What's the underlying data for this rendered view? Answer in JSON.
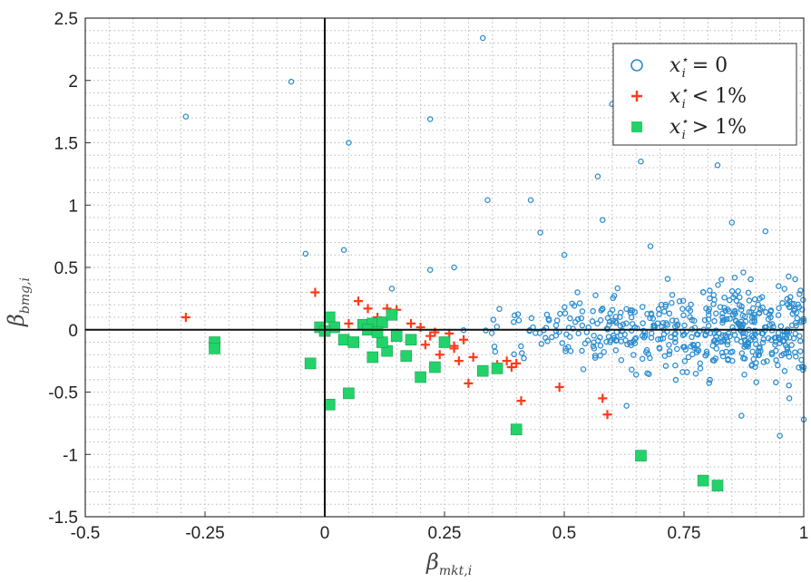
{
  "chart_data": {
    "type": "scatter",
    "title": "",
    "xlabel": {
      "base": "β",
      "sub": "mkt,i"
    },
    "ylabel": {
      "base": "β",
      "sub": "bmg,i"
    },
    "xlim": [
      -0.5,
      1
    ],
    "ylim": [
      -1.5,
      2.5
    ],
    "xticks": [
      -0.5,
      -0.25,
      0,
      0.25,
      0.5,
      0.75,
      1
    ],
    "xtick_labels": [
      "-0.5",
      "-0.25",
      "0",
      "0.25",
      "0.5",
      "0.75",
      "1"
    ],
    "yticks": [
      -1.5,
      -1,
      -0.5,
      0,
      0.5,
      1,
      1.5,
      2,
      2.5
    ],
    "ytick_labels": [
      "-1.5",
      "-1",
      "-0.5",
      "0",
      "0.5",
      "1",
      "1.5",
      "2",
      "2.5"
    ],
    "minor_grid_step_x": 0.05,
    "minor_grid_step_y": 0.1,
    "grid": true,
    "legend_position": "top-right",
    "colors": {
      "blue": "#2b8ccf",
      "red": "#ff3b1a",
      "green": "#22d36a"
    },
    "series": [
      {
        "name": "x_i* = 0",
        "legend": {
          "base": "x",
          "sup": "⋆",
          "sub": "i",
          "rest": " = 0"
        },
        "marker": "circle-open",
        "color": "#2b8ccf",
        "points": [
          [
            -0.29,
            1.71
          ],
          [
            -0.07,
            1.99
          ],
          [
            0.33,
            2.34
          ],
          [
            0.22,
            1.69
          ],
          [
            0.05,
            1.5
          ],
          [
            0.6,
            1.81
          ],
          [
            0.34,
            1.04
          ],
          [
            0.43,
            1.04
          ],
          [
            0.57,
            1.23
          ],
          [
            0.66,
            1.35
          ],
          [
            0.82,
            1.32
          ],
          [
            -0.04,
            0.61
          ],
          [
            0.04,
            0.64
          ],
          [
            0.58,
            0.88
          ],
          [
            0.85,
            0.86
          ],
          [
            0.45,
            0.78
          ],
          [
            0.27,
            0.5
          ],
          [
            0.22,
            0.48
          ],
          [
            0.14,
            0.33
          ],
          [
            0.5,
            0.6
          ],
          [
            0.68,
            0.67
          ],
          [
            0.92,
            0.79
          ],
          [
            0.79,
            0.3
          ],
          [
            0.95,
            -0.85
          ],
          [
            0.87,
            -0.69
          ],
          [
            1.0,
            -0.72
          ],
          [
            0.97,
            -0.55
          ],
          [
            0.65,
            -0.36
          ],
          [
            0.71,
            -0.21
          ],
          [
            0.63,
            -0.61
          ]
        ],
        "generated_cloud": {
          "count": 520,
          "x_range": [
            0.28,
            1.0
          ],
          "y_spread": 0.38
        }
      },
      {
        "name": "x_i* < 1%",
        "legend": {
          "base": "x",
          "sup": "⋆",
          "sub": "i",
          "rest": " < 1%"
        },
        "marker": "plus",
        "color": "#ff3b1a",
        "points": [
          [
            -0.29,
            0.1
          ],
          [
            -0.02,
            0.3
          ],
          [
            0.07,
            0.23
          ],
          [
            0.09,
            0.17
          ],
          [
            0.15,
            0.16
          ],
          [
            0.13,
            0.17
          ],
          [
            0.2,
            0.02
          ],
          [
            0.23,
            -0.02
          ],
          [
            0.25,
            -0.1
          ],
          [
            0.27,
            -0.15
          ],
          [
            0.28,
            -0.25
          ],
          [
            0.3,
            -0.43
          ],
          [
            0.36,
            -0.28
          ],
          [
            0.38,
            -0.25
          ],
          [
            0.4,
            -0.27
          ],
          [
            0.41,
            -0.57
          ],
          [
            0.49,
            -0.46
          ],
          [
            0.58,
            -0.55
          ],
          [
            0.59,
            -0.68
          ],
          [
            0.22,
            -0.05
          ],
          [
            0.26,
            -0.03
          ],
          [
            0.29,
            -0.08
          ],
          [
            0.21,
            -0.12
          ],
          [
            0.18,
            0.05
          ],
          [
            0.24,
            -0.2
          ],
          [
            0.11,
            0.1
          ],
          [
            0.05,
            0.05
          ],
          [
            0.31,
            -0.22
          ],
          [
            0.27,
            -0.13
          ],
          [
            0.39,
            -0.3
          ]
        ]
      },
      {
        "name": "x_i* > 1%",
        "legend": {
          "base": "x",
          "sup": "⋆",
          "sub": "i",
          "rest": " > 1%"
        },
        "marker": "square",
        "color": "#22d36a",
        "points": [
          [
            -0.23,
            -0.1
          ],
          [
            -0.23,
            -0.15
          ],
          [
            -0.03,
            -0.27
          ],
          [
            0.01,
            -0.6
          ],
          [
            0.05,
            -0.51
          ],
          [
            -0.01,
            0.02
          ],
          [
            0.01,
            0.1
          ],
          [
            0.02,
            0.02
          ],
          [
            0.0,
            -0.01
          ],
          [
            0.04,
            -0.08
          ],
          [
            0.06,
            -0.1
          ],
          [
            0.08,
            0.04
          ],
          [
            0.1,
            0.05
          ],
          [
            0.12,
            0.06
          ],
          [
            0.14,
            0.12
          ],
          [
            0.1,
            -0.22
          ],
          [
            0.13,
            -0.17
          ],
          [
            0.12,
            -0.1
          ],
          [
            0.15,
            -0.05
          ],
          [
            0.17,
            -0.21
          ],
          [
            0.2,
            -0.38
          ],
          [
            0.23,
            -0.3
          ],
          [
            0.25,
            -0.1
          ],
          [
            0.18,
            -0.08
          ],
          [
            0.33,
            -0.33
          ],
          [
            0.36,
            -0.31
          ],
          [
            0.4,
            -0.8
          ],
          [
            0.66,
            -1.01
          ],
          [
            0.79,
            -1.21
          ],
          [
            0.82,
            -1.25
          ],
          [
            0.09,
            0.0
          ],
          [
            0.11,
            -0.02
          ]
        ]
      }
    ]
  }
}
